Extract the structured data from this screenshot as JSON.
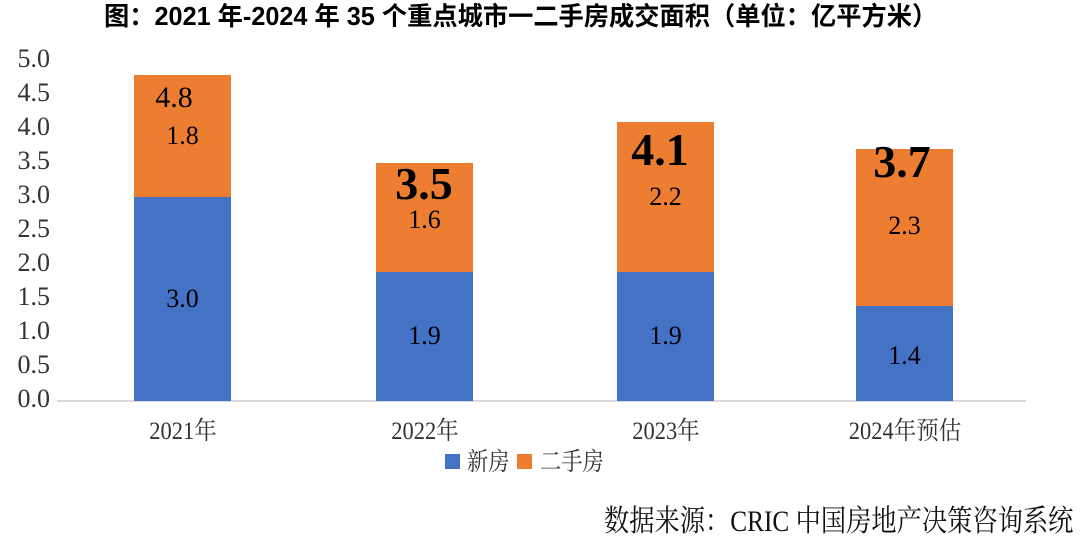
{
  "title": "图：2021 年-2024 年 35 个重点城市一二手房成交面积（单位：亿平方米）",
  "source_note": "数据来源：CRIC 中国房地产决策咨询系统",
  "colors": {
    "new_home": "#4472C4",
    "second_hand": "#ED7D31",
    "axis_line": "#D9D9D9",
    "axis_text": "#333333",
    "label_text": "#000000",
    "background": "#FFFFFF"
  },
  "legend": [
    {
      "label": "新房",
      "color": "#4472C4"
    },
    {
      "label": "二手房",
      "color": "#ED7D31"
    }
  ],
  "y_axis": {
    "ticks": [
      "0.0",
      "0.5",
      "1.0",
      "1.5",
      "2.0",
      "2.5",
      "3.0",
      "3.5",
      "4.0",
      "4.5",
      "5.0"
    ],
    "min": 0.0,
    "max": 5.0,
    "step": 0.5
  },
  "chart_data": {
    "type": "bar",
    "stacked": true,
    "title": "图：2021 年-2024 年 35 个重点城市一二手房成交面积（单位：亿平方米）",
    "unit": "亿平方米",
    "categories": [
      "2021年",
      "2022年",
      "2023年",
      "2024年预估"
    ],
    "series": [
      {
        "name": "新房",
        "color": "#4472C4",
        "values": [
          3.0,
          1.9,
          1.9,
          1.4
        ],
        "labels": [
          "3.0",
          "1.9",
          "1.9",
          "1.4"
        ]
      },
      {
        "name": "二手房",
        "color": "#ED7D31",
        "values": [
          1.8,
          1.6,
          2.2,
          2.3
        ],
        "labels": [
          "1.8",
          "1.6",
          "2.2",
          "2.3"
        ]
      }
    ],
    "totals": [
      {
        "label": "4.8",
        "value": 4.8,
        "emphasized": false
      },
      {
        "label": "3.5",
        "value": 3.5,
        "emphasized": true
      },
      {
        "label": "4.1",
        "value": 4.1,
        "emphasized": true
      },
      {
        "label": "3.7",
        "value": 3.7,
        "emphasized": true
      }
    ],
    "xlabel": "",
    "ylabel": "",
    "ylim": [
      0,
      5
    ],
    "grid": false,
    "legend_position": "bottom"
  }
}
